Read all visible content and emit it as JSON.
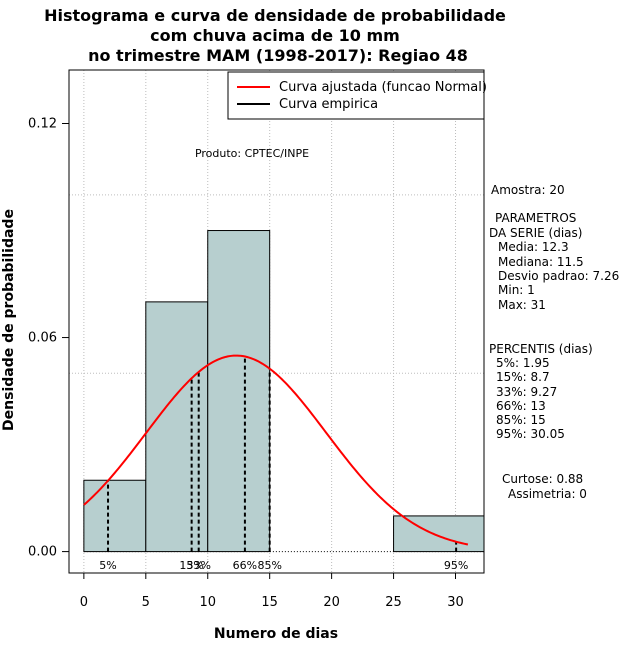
{
  "chart_data": {
    "type": "bar",
    "title_lines": [
      "Histograma e curva de densidade de probabilidade",
      "com chuva acima de 10 mm",
      "no trimestre MAM (1998-2017): Regiao 48"
    ],
    "xlabel": "Numero de dias",
    "ylabel": "Densidade de probabilidade",
    "xlim": [
      -1.2,
      32.3
    ],
    "ylim": [
      -0.006,
      0.135
    ],
    "x_ticks": [
      0,
      5,
      10,
      15,
      20,
      25,
      30
    ],
    "y_ticks": [
      0.0,
      0.06,
      0.12
    ],
    "y_tick_labels": [
      "0.00",
      "0.06",
      "0.12"
    ],
    "bins": [
      {
        "from": 0,
        "to": 5,
        "density": 0.02
      },
      {
        "from": 5,
        "to": 10,
        "density": 0.07
      },
      {
        "from": 10,
        "to": 15,
        "density": 0.09
      },
      {
        "from": 15,
        "to": 20,
        "density": 0.0
      },
      {
        "from": 20,
        "to": 25,
        "density": 0.0
      },
      {
        "from": 25,
        "to": 32.3,
        "density": 0.01
      }
    ],
    "grid_x": [
      0,
      5,
      10,
      15,
      20,
      25,
      30
    ],
    "grid_y": [
      0.05,
      0.1
    ],
    "normal_fit": {
      "mean": 12.3,
      "sd": 7.26,
      "from": 0,
      "to": 31
    },
    "percentile_lines": [
      {
        "x": 1.95,
        "label": "5%"
      },
      {
        "x": 8.7,
        "label": "15%"
      },
      {
        "x": 9.27,
        "label": "33%"
      },
      {
        "x": 13,
        "label": "66%"
      },
      {
        "x": 15,
        "label": "85%"
      },
      {
        "x": 30.05,
        "label": "95%"
      }
    ],
    "legend": [
      {
        "label": "Curva ajustada (funcao Normal)",
        "color": "#ff0000"
      },
      {
        "label": "Curva empirica",
        "color": "#000000"
      }
    ],
    "legend_position": "top-right",
    "annotation": "Produto: CPTEC/INPE",
    "colors": {
      "bar_fill": "#b7cfcf",
      "curve": "#ff0000",
      "grid": "#bdbdbd"
    }
  },
  "stats": {
    "amostra": "Amostra: 20",
    "param_title_1": "PARAMETROS",
    "param_title_2": "DA SERIE (dias)",
    "media": "Media: 12.3",
    "mediana": "Mediana: 11.5",
    "desvio": "Desvio padrao: 7.26",
    "min": "Min: 1",
    "max": "Max: 31",
    "percentis_title": "PERCENTIS (dias)",
    "p5": "5%: 1.95",
    "p15": "15%: 8.7",
    "p33": "33%: 9.27",
    "p66": "66%: 13",
    "p85": "85%: 15",
    "p95": "95%: 30.05",
    "curtose": "Curtose: 0.88",
    "assimetria": "Assimetria: 0"
  }
}
